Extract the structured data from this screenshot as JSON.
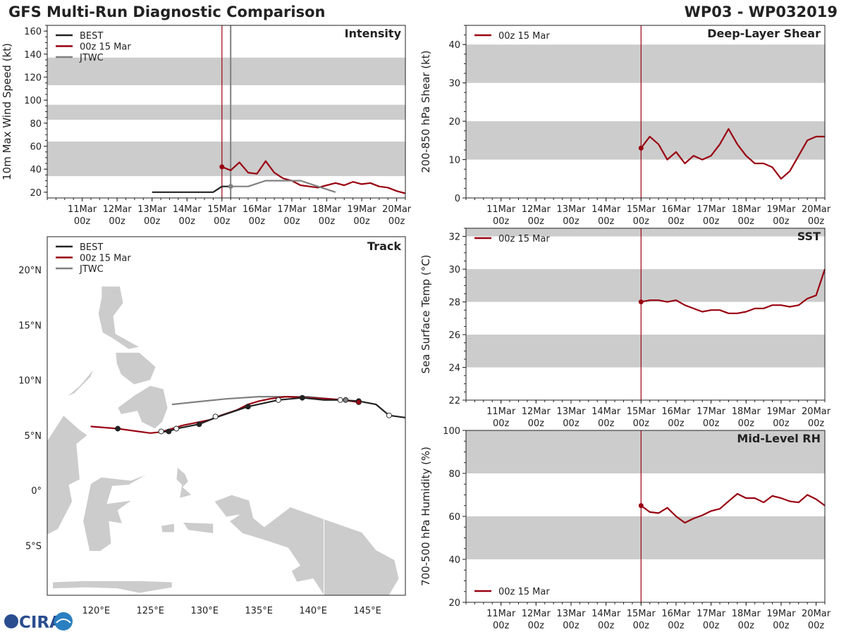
{
  "header": {
    "title": "GFS Multi-Run Diagnostic Comparison",
    "storm": "WP03 - WP032019"
  },
  "logo_text": "CIRA",
  "colors": {
    "best": "#222222",
    "run": "#990011",
    "jtwc": "#808080",
    "band": "#cccccc",
    "land": "#cccccc"
  },
  "time_ticks": [
    "11Mar 00z",
    "12Mar 00z",
    "13Mar 00z",
    "14Mar 00z",
    "15Mar 00z",
    "16Mar 00z",
    "17Mar 00z",
    "18Mar 00z",
    "19Mar 00z",
    "20Mar 00z"
  ],
  "chart_data": [
    {
      "id": "intensity",
      "type": "line",
      "title": "Intensity",
      "ylabel": "10m Max Wind Speed (kt)",
      "xlabel": "",
      "xlim": [
        10.0,
        20.25
      ],
      "ylim": [
        15,
        165
      ],
      "yticks": [
        20,
        40,
        60,
        80,
        100,
        120,
        140,
        160
      ],
      "bands": [
        [
          34,
          64
        ],
        [
          83,
          96
        ],
        [
          113,
          137
        ]
      ],
      "vlines": [
        {
          "x": 15.0,
          "color": "run"
        },
        {
          "x": 15.25,
          "color": "jtwc"
        }
      ],
      "legend": [
        "BEST",
        "00z 15 Mar",
        "JTWC"
      ],
      "series": [
        {
          "name": "BEST",
          "color": "best",
          "x": [
            13.0,
            14.75,
            15.0,
            15.25
          ],
          "y": [
            20,
            20,
            25,
            25
          ]
        },
        {
          "name": "00z 15 Mar",
          "color": "run",
          "marker_first": true,
          "x": [
            15.0,
            15.25,
            15.5,
            15.75,
            16.0,
            16.25,
            16.5,
            16.75,
            17.0,
            17.25,
            17.5,
            17.75,
            18.0,
            18.25,
            18.5,
            18.75,
            19.0,
            19.25,
            19.5,
            19.75,
            20.0,
            20.25
          ],
          "y": [
            42,
            39,
            46,
            37,
            36,
            47,
            37,
            32,
            30,
            26,
            25,
            24,
            26,
            28,
            26,
            29,
            27,
            28,
            25,
            24,
            21,
            19
          ]
        },
        {
          "name": "JTWC",
          "color": "jtwc",
          "marker_first": true,
          "x": [
            15.25,
            15.75,
            16.25,
            16.75,
            17.25,
            17.75,
            18.25
          ],
          "y": [
            25,
            25,
            30,
            30,
            30,
            25,
            20
          ]
        }
      ]
    },
    {
      "id": "shear",
      "type": "line",
      "title": "Deep-Layer Shear",
      "ylabel": "200-850 hPa Shear (kt)",
      "xlabel": "",
      "xlim": [
        10.0,
        20.25
      ],
      "ylim": [
        0,
        45
      ],
      "yticks": [
        0,
        10,
        20,
        30,
        40
      ],
      "bands": [
        [
          10,
          20
        ],
        [
          30,
          40
        ]
      ],
      "vlines": [
        {
          "x": 15.0,
          "color": "run"
        }
      ],
      "legend": [
        "00z 15 Mar"
      ],
      "series": [
        {
          "name": "00z 15 Mar",
          "color": "run",
          "marker_first": true,
          "x": [
            15.0,
            15.25,
            15.5,
            15.75,
            16.0,
            16.25,
            16.5,
            16.75,
            17.0,
            17.25,
            17.5,
            17.75,
            18.0,
            18.25,
            18.5,
            18.75,
            19.0,
            19.25,
            19.5,
            19.75,
            20.0,
            20.25
          ],
          "y": [
            13,
            16,
            14,
            10,
            12,
            9,
            11,
            10,
            11,
            14,
            18,
            14,
            11,
            9,
            9,
            8,
            5,
            7,
            11,
            15,
            16,
            16
          ]
        }
      ]
    },
    {
      "id": "sst",
      "type": "line",
      "title": "SST",
      "ylabel": "Sea Surface Temp (°C)",
      "xlabel": "",
      "xlim": [
        10.0,
        20.25
      ],
      "ylim": [
        22,
        32.5
      ],
      "yticks": [
        22,
        24,
        26,
        28,
        30,
        32
      ],
      "bands": [
        [
          24,
          26
        ],
        [
          28,
          30
        ],
        [
          32,
          32.5
        ]
      ],
      "vlines": [
        {
          "x": 15.0,
          "color": "run"
        }
      ],
      "legend": [
        "00z 15 Mar"
      ],
      "series": [
        {
          "name": "00z 15 Mar",
          "color": "run",
          "marker_first": true,
          "x": [
            15.0,
            15.25,
            15.5,
            15.75,
            16.0,
            16.25,
            16.5,
            16.75,
            17.0,
            17.25,
            17.5,
            17.75,
            18.0,
            18.25,
            18.5,
            18.75,
            19.0,
            19.25,
            19.5,
            19.75,
            20.0,
            20.25
          ],
          "y": [
            28.0,
            28.1,
            28.1,
            28.0,
            28.1,
            27.8,
            27.6,
            27.4,
            27.5,
            27.5,
            27.3,
            27.3,
            27.4,
            27.6,
            27.6,
            27.8,
            27.8,
            27.7,
            27.8,
            28.2,
            28.4,
            30.0
          ]
        }
      ]
    },
    {
      "id": "rh",
      "type": "line",
      "title": "Mid-Level RH",
      "ylabel": "700-500 hPa Humidity (%)",
      "xlabel": "",
      "xlim": [
        10.0,
        20.25
      ],
      "ylim": [
        20,
        100
      ],
      "yticks": [
        20,
        40,
        60,
        80,
        100
      ],
      "bands": [
        [
          40,
          60
        ],
        [
          80,
          100
        ]
      ],
      "vlines": [
        {
          "x": 15.0,
          "color": "run"
        }
      ],
      "legend": [
        "00z 15 Mar"
      ],
      "legend_loc": "lower-left",
      "series": [
        {
          "name": "00z 15 Mar",
          "color": "run",
          "marker_first": true,
          "x": [
            15.0,
            15.25,
            15.5,
            15.75,
            16.0,
            16.25,
            16.5,
            16.75,
            17.0,
            17.25,
            17.5,
            17.75,
            18.0,
            18.25,
            18.5,
            18.75,
            19.0,
            19.25,
            19.5,
            19.75,
            20.0,
            20.25
          ],
          "y": [
            65,
            62,
            61.5,
            64,
            60,
            57,
            59,
            60.5,
            62.5,
            63.5,
            67,
            70.5,
            68.5,
            68.5,
            66.5,
            69.5,
            68.5,
            67,
            66.5,
            70,
            68,
            65
          ]
        }
      ]
    },
    {
      "id": "track",
      "type": "scatter",
      "title": "Track",
      "xlabel": "",
      "ylabel": "",
      "xlim": [
        115.5,
        148.5
      ],
      "ylim": [
        -9.5,
        23
      ],
      "xticks": [
        120,
        125,
        130,
        135,
        140,
        145
      ],
      "xticklabels": [
        "120°E",
        "125°E",
        "130°E",
        "135°E",
        "140°E",
        "145°E"
      ],
      "yticks": [
        -5,
        0,
        5,
        10,
        15,
        20
      ],
      "yticklabels": [
        "5°S",
        "0°",
        "5°N",
        "10°N",
        "15°N",
        "20°N"
      ],
      "legend": [
        "BEST",
        "00z 15 Mar",
        "JTWC"
      ],
      "series": [
        {
          "name": "BEST",
          "color": "best",
          "lon": [
            148.5,
            147.0,
            145.8,
            144.2,
            142.5,
            141.0,
            139.0,
            136.8,
            134.0,
            131.0,
            129.5,
            127.4,
            126.7,
            126.0
          ],
          "lat": [
            6.6,
            6.8,
            7.8,
            8.1,
            8.2,
            8.2,
            8.4,
            8.2,
            7.6,
            6.6,
            6.0,
            5.6,
            5.35,
            5.3
          ]
        },
        {
          "name": "00z 15 Mar",
          "color": "run",
          "lon": [
            144.2,
            142.7,
            141.5,
            139.5,
            137.5,
            136.0,
            135.0,
            134.0,
            133.0,
            131.5,
            130.5,
            129.0,
            128.0,
            127.0,
            126.0,
            125.0,
            122.0,
            119.5
          ],
          "lat": [
            8.0,
            8.2,
            8.3,
            8.4,
            8.5,
            8.3,
            8.1,
            7.8,
            7.3,
            6.8,
            6.4,
            6.1,
            5.9,
            5.6,
            5.3,
            5.2,
            5.6,
            5.8
          ]
        },
        {
          "name": "JTWC",
          "color": "jtwc",
          "lon": [
            143.0,
            141.5,
            139.5,
            136.5,
            135.0,
            132.0,
            129.0,
            127.0
          ],
          "lat": [
            8.2,
            8.3,
            8.5,
            8.5,
            8.5,
            8.3,
            8.0,
            7.8
          ]
        }
      ],
      "markers": [
        {
          "lon": 147.0,
          "lat": 6.8,
          "fill": "white"
        },
        {
          "lon": 144.2,
          "lat": 8.1,
          "fill": "best"
        },
        {
          "lon": 144.2,
          "lat": 8.0,
          "fill": "run"
        },
        {
          "lon": 142.5,
          "lat": 8.2,
          "fill": "white"
        },
        {
          "lon": 143.0,
          "lat": 8.2,
          "fill": "jtwc"
        },
        {
          "lon": 139.0,
          "lat": 8.4,
          "fill": "best"
        },
        {
          "lon": 136.8,
          "lat": 8.2,
          "fill": "white"
        },
        {
          "lon": 134.0,
          "lat": 7.6,
          "fill": "best"
        },
        {
          "lon": 131.0,
          "lat": 6.7,
          "fill": "white"
        },
        {
          "lon": 129.5,
          "lat": 6.0,
          "fill": "best"
        },
        {
          "lon": 127.4,
          "lat": 5.6,
          "fill": "white"
        },
        {
          "lon": 126.7,
          "lat": 5.35,
          "fill": "best"
        },
        {
          "lon": 126.0,
          "lat": 5.35,
          "fill": "white"
        },
        {
          "lon": 122.0,
          "lat": 5.6,
          "fill": "best"
        }
      ]
    }
  ]
}
